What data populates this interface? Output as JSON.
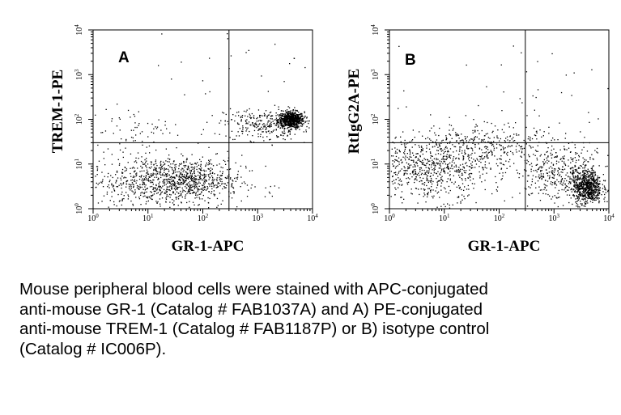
{
  "chart_data": [
    {
      "type": "scatter",
      "panel_label": "A",
      "xlabel": "GR-1-APC",
      "ylabel": "TREM-1-PE",
      "xscale": "log",
      "yscale": "log",
      "xlim": [
        1,
        10000
      ],
      "ylim": [
        1,
        10000
      ],
      "x_tick_labels": [
        "10",
        "10",
        "10",
        "10",
        "10"
      ],
      "x_tick_exponents": [
        "0",
        "1",
        "2",
        "3",
        "4"
      ],
      "y_tick_labels": [
        "10",
        "10",
        "10",
        "10",
        "10"
      ],
      "y_tick_exponents": [
        "0",
        "1",
        "2",
        "3",
        "4"
      ],
      "quadrant_gates": {
        "x": 300,
        "y": 30
      },
      "populations": [
        {
          "center": [
            4000,
            100
          ],
          "spread_log": [
            0.12,
            0.09
          ],
          "count": 700
        },
        {
          "center": [
            1200,
            80
          ],
          "spread_log": [
            0.35,
            0.18
          ],
          "count": 260
        },
        {
          "center": [
            20,
            4
          ],
          "spread_log": [
            0.7,
            0.3
          ],
          "count": 900
        },
        {
          "center": [
            60,
            5
          ],
          "spread_log": [
            0.3,
            0.2
          ],
          "count": 250
        },
        {
          "center": [
            5,
            60
          ],
          "spread_log": [
            0.45,
            0.25
          ],
          "count": 70
        },
        {
          "center": [
            300,
            300
          ],
          "spread_log": [
            1.3,
            1.2
          ],
          "count": 50
        }
      ],
      "marker_color": "#000000"
    },
    {
      "type": "scatter",
      "panel_label": "B",
      "xlabel": "GR-1-APC",
      "ylabel": "RtIgG2A-PE",
      "xscale": "log",
      "yscale": "log",
      "xlim": [
        1,
        10000
      ],
      "ylim": [
        1,
        10000
      ],
      "x_tick_labels": [
        "10",
        "10",
        "10",
        "10",
        "10"
      ],
      "x_tick_exponents": [
        "0",
        "1",
        "2",
        "3",
        "4"
      ],
      "y_tick_labels": [
        "10",
        "10",
        "10",
        "10",
        "10"
      ],
      "y_tick_exponents": [
        "0",
        "1",
        "2",
        "3",
        "4"
      ],
      "quadrant_gates": {
        "x": 300,
        "y": 30
      },
      "populations": [
        {
          "center": [
            4000,
            3
          ],
          "spread_log": [
            0.13,
            0.18
          ],
          "count": 650
        },
        {
          "center": [
            1500,
            6
          ],
          "spread_log": [
            0.45,
            0.3
          ],
          "count": 450
        },
        {
          "center": [
            5,
            8
          ],
          "spread_log": [
            0.55,
            0.35
          ],
          "count": 700
        },
        {
          "center": [
            60,
            25
          ],
          "spread_log": [
            0.7,
            0.25
          ],
          "count": 350
        },
        {
          "center": [
            200,
            300
          ],
          "spread_log": [
            1.3,
            1.1
          ],
          "count": 60
        }
      ],
      "marker_color": "#000000"
    }
  ],
  "caption": {
    "line1": "Mouse peripheral blood cells were stained with APC-conjugated",
    "line2": "anti-mouse GR-1 (Catalog # FAB1037A) and A) PE-conjugated",
    "line3": "anti-mouse TREM-1 (Catalog # FAB1187P) or B) isotype control",
    "line4": "(Catalog # IC006P)."
  }
}
